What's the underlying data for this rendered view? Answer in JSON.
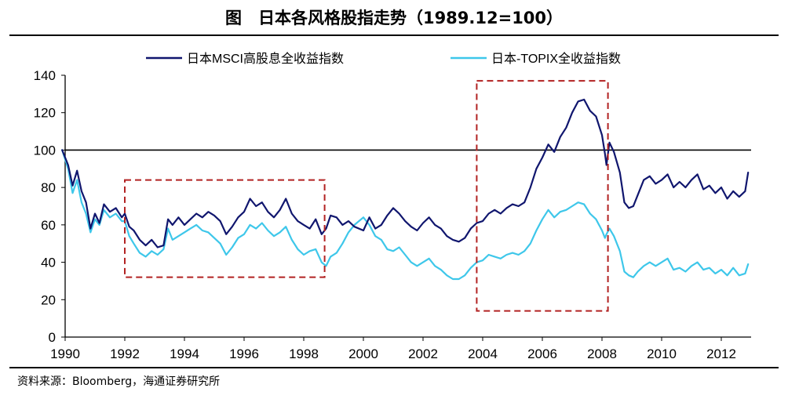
{
  "page": {
    "title": "图　日本各风格股指走势（1989.12=100）",
    "source": "资料来源：Bloomberg，海通证券研究所"
  },
  "colors": {
    "msci_high_dividend": "#10166e",
    "topix": "#3ec7ea",
    "reference_line": "#000000",
    "highlight_box": "#b22222"
  },
  "chart_data": {
    "type": "line",
    "xlim": [
      1990,
      2013.0
    ],
    "ylim": [
      0,
      140
    ],
    "x_ticks": [
      "1990",
      "1992",
      "1994",
      "1996",
      "1998",
      "2000",
      "2002",
      "2004",
      "2006",
      "2008",
      "2010",
      "2012"
    ],
    "y_ticks": [
      "0",
      "20",
      "40",
      "60",
      "80",
      "100",
      "120",
      "140"
    ],
    "grid": false,
    "legend": "top",
    "reference_line": 100,
    "highlight_periods": [
      {
        "x": [
          1992.0,
          1998.7
        ],
        "y": [
          32,
          84
        ]
      },
      {
        "x": [
          2003.8,
          2008.2
        ],
        "y": [
          14,
          137
        ]
      }
    ],
    "series": [
      {
        "name": "日本MSCI高股息全收益指数",
        "points": [
          [
            1989.9,
            100
          ],
          [
            1990.1,
            92
          ],
          [
            1990.25,
            81
          ],
          [
            1990.4,
            89
          ],
          [
            1990.55,
            78
          ],
          [
            1990.7,
            72
          ],
          [
            1990.85,
            58
          ],
          [
            1991.0,
            66
          ],
          [
            1991.15,
            61
          ],
          [
            1991.3,
            71
          ],
          [
            1991.5,
            67
          ],
          [
            1991.7,
            69
          ],
          [
            1991.9,
            64
          ],
          [
            1992.0,
            66
          ],
          [
            1992.15,
            59
          ],
          [
            1992.3,
            57
          ],
          [
            1992.5,
            52
          ],
          [
            1992.7,
            49
          ],
          [
            1992.9,
            52
          ],
          [
            1993.1,
            48
          ],
          [
            1993.3,
            49
          ],
          [
            1993.45,
            63
          ],
          [
            1993.6,
            60
          ],
          [
            1993.8,
            64
          ],
          [
            1994.0,
            60
          ],
          [
            1994.2,
            63
          ],
          [
            1994.4,
            66
          ],
          [
            1994.6,
            64
          ],
          [
            1994.8,
            67
          ],
          [
            1995.0,
            65
          ],
          [
            1995.2,
            62
          ],
          [
            1995.4,
            55
          ],
          [
            1995.6,
            59
          ],
          [
            1995.8,
            64
          ],
          [
            1996.0,
            67
          ],
          [
            1996.2,
            74
          ],
          [
            1996.4,
            70
          ],
          [
            1996.6,
            72
          ],
          [
            1996.8,
            67
          ],
          [
            1997.0,
            64
          ],
          [
            1997.2,
            68
          ],
          [
            1997.4,
            74
          ],
          [
            1997.6,
            66
          ],
          [
            1997.8,
            62
          ],
          [
            1998.0,
            60
          ],
          [
            1998.2,
            58
          ],
          [
            1998.4,
            63
          ],
          [
            1998.6,
            55
          ],
          [
            1998.75,
            58
          ],
          [
            1998.9,
            65
          ],
          [
            1999.1,
            64
          ],
          [
            1999.3,
            60
          ],
          [
            1999.5,
            62
          ],
          [
            1999.7,
            59
          ],
          [
            2000.0,
            57
          ],
          [
            2000.2,
            64
          ],
          [
            2000.4,
            58
          ],
          [
            2000.6,
            60
          ],
          [
            2000.8,
            65
          ],
          [
            2001.0,
            69
          ],
          [
            2001.2,
            66
          ],
          [
            2001.4,
            62
          ],
          [
            2001.6,
            59
          ],
          [
            2001.8,
            57
          ],
          [
            2002.0,
            61
          ],
          [
            2002.2,
            64
          ],
          [
            2002.4,
            60
          ],
          [
            2002.6,
            58
          ],
          [
            2002.8,
            54
          ],
          [
            2003.0,
            52
          ],
          [
            2003.2,
            51
          ],
          [
            2003.4,
            53
          ],
          [
            2003.6,
            58
          ],
          [
            2003.8,
            61
          ],
          [
            2004.0,
            62
          ],
          [
            2004.2,
            66
          ],
          [
            2004.4,
            68
          ],
          [
            2004.6,
            66
          ],
          [
            2004.8,
            69
          ],
          [
            2005.0,
            71
          ],
          [
            2005.2,
            70
          ],
          [
            2005.4,
            72
          ],
          [
            2005.6,
            80
          ],
          [
            2005.8,
            90
          ],
          [
            2006.0,
            96
          ],
          [
            2006.2,
            103
          ],
          [
            2006.4,
            99
          ],
          [
            2006.6,
            107
          ],
          [
            2006.8,
            112
          ],
          [
            2007.0,
            120
          ],
          [
            2007.2,
            126
          ],
          [
            2007.4,
            127
          ],
          [
            2007.6,
            121
          ],
          [
            2007.8,
            118
          ],
          [
            2008.0,
            108
          ],
          [
            2008.1,
            98
          ],
          [
            2008.15,
            92
          ],
          [
            2008.25,
            104
          ],
          [
            2008.4,
            99
          ],
          [
            2008.6,
            88
          ],
          [
            2008.75,
            72
          ],
          [
            2008.9,
            69
          ],
          [
            2009.05,
            70
          ],
          [
            2009.2,
            76
          ],
          [
            2009.4,
            84
          ],
          [
            2009.6,
            86
          ],
          [
            2009.8,
            82
          ],
          [
            2010.0,
            84
          ],
          [
            2010.2,
            87
          ],
          [
            2010.4,
            80
          ],
          [
            2010.6,
            83
          ],
          [
            2010.8,
            80
          ],
          [
            2011.0,
            84
          ],
          [
            2011.2,
            87
          ],
          [
            2011.4,
            79
          ],
          [
            2011.6,
            81
          ],
          [
            2011.8,
            77
          ],
          [
            2012.0,
            80
          ],
          [
            2012.2,
            74
          ],
          [
            2012.4,
            78
          ],
          [
            2012.6,
            75
          ],
          [
            2012.8,
            78
          ],
          [
            2012.9,
            88
          ]
        ]
      },
      {
        "name": "日本-TOPIX全收益指数",
        "points": [
          [
            1989.9,
            100
          ],
          [
            1990.1,
            90
          ],
          [
            1990.25,
            77
          ],
          [
            1990.4,
            84
          ],
          [
            1990.55,
            72
          ],
          [
            1990.7,
            66
          ],
          [
            1990.85,
            56
          ],
          [
            1991.0,
            63
          ],
          [
            1991.15,
            60
          ],
          [
            1991.3,
            68
          ],
          [
            1991.5,
            64
          ],
          [
            1991.7,
            66
          ],
          [
            1991.9,
            62
          ],
          [
            1992.0,
            62
          ],
          [
            1992.15,
            54
          ],
          [
            1992.3,
            50
          ],
          [
            1992.5,
            45
          ],
          [
            1992.7,
            43
          ],
          [
            1992.9,
            46
          ],
          [
            1993.1,
            44
          ],
          [
            1993.3,
            47
          ],
          [
            1993.45,
            58
          ],
          [
            1993.6,
            52
          ],
          [
            1993.8,
            54
          ],
          [
            1994.0,
            56
          ],
          [
            1994.2,
            58
          ],
          [
            1994.4,
            60
          ],
          [
            1994.6,
            57
          ],
          [
            1994.8,
            56
          ],
          [
            1995.0,
            53
          ],
          [
            1995.2,
            50
          ],
          [
            1995.4,
            44
          ],
          [
            1995.6,
            48
          ],
          [
            1995.8,
            53
          ],
          [
            1996.0,
            55
          ],
          [
            1996.2,
            60
          ],
          [
            1996.4,
            58
          ],
          [
            1996.6,
            61
          ],
          [
            1996.8,
            57
          ],
          [
            1997.0,
            54
          ],
          [
            1997.2,
            56
          ],
          [
            1997.4,
            59
          ],
          [
            1997.6,
            52
          ],
          [
            1997.8,
            47
          ],
          [
            1998.0,
            44
          ],
          [
            1998.2,
            46
          ],
          [
            1998.4,
            47
          ],
          [
            1998.6,
            40
          ],
          [
            1998.75,
            38
          ],
          [
            1998.9,
            43
          ],
          [
            1999.1,
            45
          ],
          [
            1999.3,
            50
          ],
          [
            1999.5,
            56
          ],
          [
            1999.7,
            60
          ],
          [
            2000.0,
            64
          ],
          [
            2000.2,
            60
          ],
          [
            2000.4,
            54
          ],
          [
            2000.6,
            52
          ],
          [
            2000.8,
            47
          ],
          [
            2001.0,
            46
          ],
          [
            2001.2,
            48
          ],
          [
            2001.4,
            44
          ],
          [
            2001.6,
            40
          ],
          [
            2001.8,
            38
          ],
          [
            2002.0,
            40
          ],
          [
            2002.2,
            42
          ],
          [
            2002.4,
            38
          ],
          [
            2002.6,
            36
          ],
          [
            2002.8,
            33
          ],
          [
            2003.0,
            31
          ],
          [
            2003.2,
            31
          ],
          [
            2003.4,
            33
          ],
          [
            2003.6,
            37
          ],
          [
            2003.8,
            40
          ],
          [
            2004.0,
            41
          ],
          [
            2004.2,
            44
          ],
          [
            2004.4,
            43
          ],
          [
            2004.6,
            42
          ],
          [
            2004.8,
            44
          ],
          [
            2005.0,
            45
          ],
          [
            2005.2,
            44
          ],
          [
            2005.4,
            46
          ],
          [
            2005.6,
            50
          ],
          [
            2005.8,
            57
          ],
          [
            2006.0,
            63
          ],
          [
            2006.2,
            68
          ],
          [
            2006.4,
            64
          ],
          [
            2006.6,
            67
          ],
          [
            2006.8,
            68
          ],
          [
            2007.0,
            70
          ],
          [
            2007.2,
            72
          ],
          [
            2007.4,
            71
          ],
          [
            2007.6,
            66
          ],
          [
            2007.8,
            63
          ],
          [
            2008.0,
            57
          ],
          [
            2008.1,
            53
          ],
          [
            2008.15,
            55
          ],
          [
            2008.25,
            58
          ],
          [
            2008.4,
            54
          ],
          [
            2008.6,
            46
          ],
          [
            2008.75,
            35
          ],
          [
            2008.9,
            33
          ],
          [
            2009.05,
            32
          ],
          [
            2009.2,
            35
          ],
          [
            2009.4,
            38
          ],
          [
            2009.6,
            40
          ],
          [
            2009.8,
            38
          ],
          [
            2010.0,
            40
          ],
          [
            2010.2,
            42
          ],
          [
            2010.4,
            36
          ],
          [
            2010.6,
            37
          ],
          [
            2010.8,
            35
          ],
          [
            2011.0,
            38
          ],
          [
            2011.2,
            40
          ],
          [
            2011.4,
            36
          ],
          [
            2011.6,
            37
          ],
          [
            2011.8,
            34
          ],
          [
            2012.0,
            36
          ],
          [
            2012.2,
            33
          ],
          [
            2012.4,
            37
          ],
          [
            2012.6,
            33
          ],
          [
            2012.8,
            34
          ],
          [
            2012.9,
            39
          ]
        ]
      }
    ]
  }
}
